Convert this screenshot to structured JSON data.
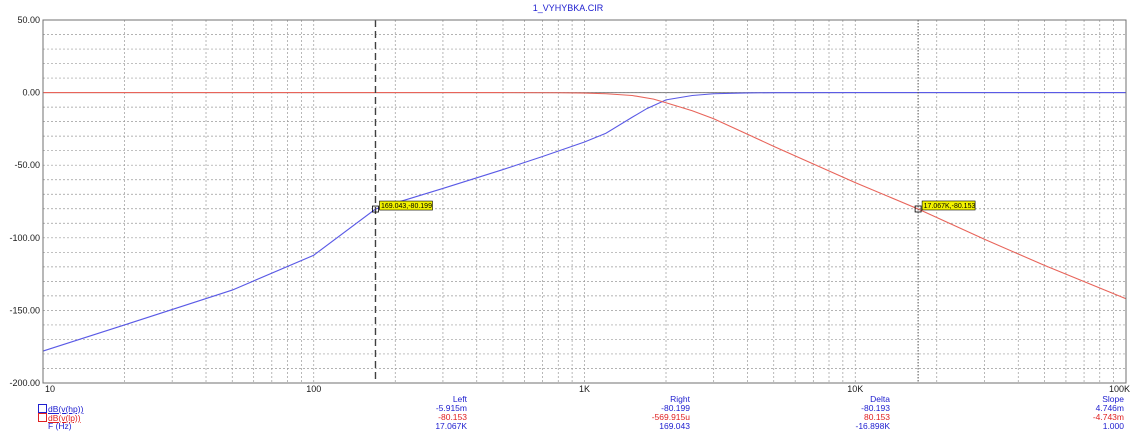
{
  "window": {
    "title": "1_VYHYBKA.CIR"
  },
  "chart_data": {
    "type": "line",
    "title": "1_VYHYBKA.CIR",
    "xscale": "log",
    "xlim": [
      10,
      100000
    ],
    "ylim": [
      -200,
      50
    ],
    "x_ticks": [
      {
        "v": 10,
        "label": "10"
      },
      {
        "v": 100,
        "label": "100"
      },
      {
        "v": 1000,
        "label": "1K"
      },
      {
        "v": 10000,
        "label": "10K"
      },
      {
        "v": 100000,
        "label": "100K"
      }
    ],
    "y_ticks": [
      {
        "v": 50,
        "label": "50.00"
      },
      {
        "v": 0,
        "label": "0.00"
      },
      {
        "v": -50,
        "label": "-50.00"
      },
      {
        "v": -100,
        "label": "-100.00"
      },
      {
        "v": -150,
        "label": "-150.00"
      },
      {
        "v": -200,
        "label": "-200.00"
      }
    ],
    "grid": true,
    "series": [
      {
        "name": "dB(v(hp))",
        "color": "#5a5ae6",
        "x": [
          10,
          20,
          50,
          100,
          169.043,
          300,
          500,
          700,
          1000,
          1200,
          1500,
          1700,
          2000,
          2500,
          3000,
          4000,
          5000,
          10000,
          20000,
          50000,
          100000
        ],
        "y": [
          -178,
          -160,
          -136,
          -112,
          -80.199,
          -66,
          -53,
          -44,
          -34,
          -28,
          -17,
          -11,
          -5,
          -2,
          -0.8,
          -0.2,
          -0.05,
          0,
          0,
          0,
          0
        ]
      },
      {
        "name": "dB(v(lp))",
        "color": "#e8645a",
        "x": [
          10,
          100,
          500,
          800,
          1000,
          1200,
          1500,
          1800,
          2000,
          2500,
          3000,
          5000,
          10000,
          17067,
          30000,
          50000,
          100000
        ],
        "y": [
          0,
          0,
          0,
          -0.1,
          -0.3,
          -0.8,
          -2,
          -4.5,
          -7,
          -12.5,
          -18,
          -37,
          -62,
          -80.153,
          -101,
          -119,
          -142
        ]
      }
    ],
    "cursors": [
      {
        "x": 169.043,
        "style": "dashed"
      },
      {
        "x": 17067,
        "style": "dotted"
      }
    ],
    "annotations": [
      {
        "x": 169.043,
        "y": -80.199,
        "label": "169.043,-80.199"
      },
      {
        "x": 17067,
        "y": -80.153,
        "label": "17.067K,-80.153"
      }
    ]
  },
  "readout": {
    "headers": {
      "left": "Left",
      "right": "Right",
      "delta": "Delta",
      "slope": "Slope"
    },
    "rows": [
      {
        "label": "dB(v(hp))",
        "color": "#2020d0",
        "left": "-5.915m",
        "right": "-80.199",
        "delta": "-80.193",
        "slope": "4.746m"
      },
      {
        "label": "dB(v(lp))",
        "color": "#e02020",
        "left": "-80.153",
        "right": "-569.915u",
        "delta": "80.153",
        "slope": "-4.743m"
      },
      {
        "label": "F (Hz)",
        "color": "#2020d0",
        "left": "17.067K",
        "right": "169.043",
        "delta": "-16.898K",
        "slope": "1.000"
      }
    ]
  }
}
